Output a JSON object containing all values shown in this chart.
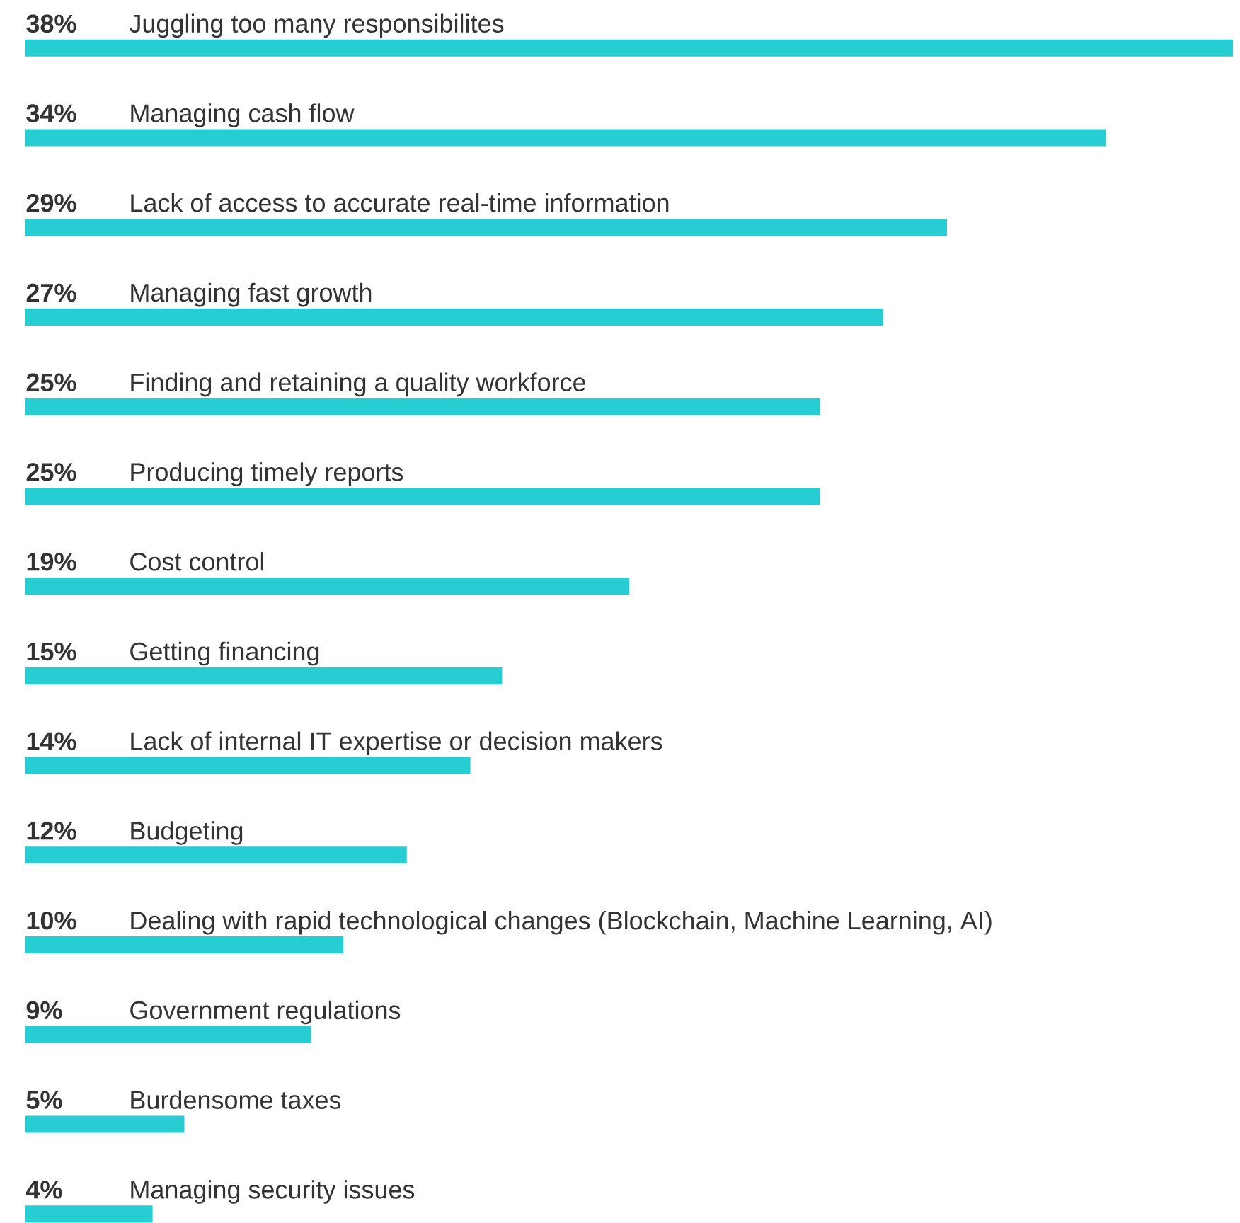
{
  "chart_data": {
    "type": "bar",
    "orientation": "horizontal",
    "color": "#26cdd3",
    "categories": [
      "Juggling too many responsibilites",
      "Managing cash flow",
      "Lack of access to accurate real-time information",
      "Managing fast growth",
      "Finding and retaining a quality workforce",
      "Producing timely reports",
      "Cost control",
      "Getting financing",
      "Lack of internal IT expertise or decision makers",
      "Budgeting",
      "Dealing with rapid technological changes (Blockchain, Machine Learning, AI)",
      "Government regulations",
      "Burdensome taxes",
      "Managing security issues"
    ],
    "values": [
      38,
      34,
      29,
      27,
      25,
      25,
      19,
      15,
      14,
      12,
      10,
      9,
      5,
      4
    ],
    "value_labels": [
      "38%",
      "34%",
      "29%",
      "27%",
      "25%",
      "25%",
      "19%",
      "15%",
      "14%",
      "12%",
      "10%",
      "9%",
      "5%",
      "4%"
    ]
  }
}
